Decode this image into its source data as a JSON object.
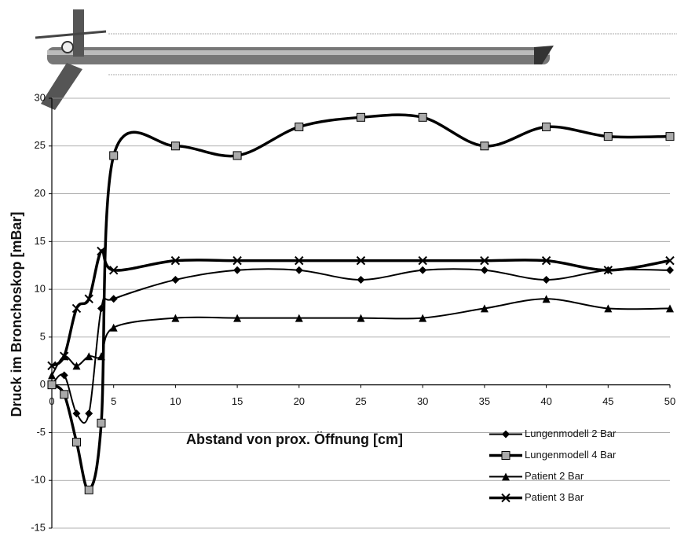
{
  "chart_data": {
    "type": "line",
    "xlabel": "Abstand von prox. Öffnung [cm]",
    "ylabel": "Druck im Bronchoskop [mBar]",
    "x": [
      0,
      1,
      2,
      3,
      4,
      5,
      10,
      15,
      20,
      25,
      30,
      35,
      40,
      45,
      50
    ],
    "series": [
      {
        "name": "Lungenmodell 2 Bar",
        "color": "#000000",
        "marker": "diamond",
        "linewidth": 2,
        "values": [
          0,
          1,
          -3,
          -3,
          8,
          9,
          11,
          12,
          12,
          11,
          12,
          12,
          11,
          12,
          12
        ]
      },
      {
        "name": "Lungenmodell 4 Bar",
        "color": "#000000",
        "marker": "square",
        "linewidth": 3.5,
        "values": [
          0,
          -1,
          -6,
          -11,
          -4,
          24,
          25,
          24,
          27,
          28,
          28,
          25,
          27,
          26,
          26
        ]
      },
      {
        "name": "Patient 2 Bar",
        "color": "#000000",
        "marker": "triangle",
        "linewidth": 2,
        "values": [
          1,
          3,
          2,
          3,
          3,
          6,
          7,
          7,
          7,
          7,
          7,
          8,
          9,
          8,
          8
        ]
      },
      {
        "name": "Patient 3 Bar",
        "color": "#000000",
        "marker": "x",
        "linewidth": 3.5,
        "values": [
          2,
          3,
          8,
          9,
          14,
          12,
          13,
          13,
          13,
          13,
          13,
          13,
          13,
          12,
          13
        ]
      }
    ],
    "xlim": [
      0,
      50
    ],
    "xticks": [
      0,
      5,
      10,
      15,
      20,
      25,
      30,
      35,
      40,
      45,
      50
    ],
    "ylim": [
      -15,
      30
    ],
    "yticks": [
      -15,
      -10,
      -5,
      0,
      5,
      10,
      15,
      20,
      25,
      30
    ],
    "grid": true,
    "legend": "lower right"
  }
}
